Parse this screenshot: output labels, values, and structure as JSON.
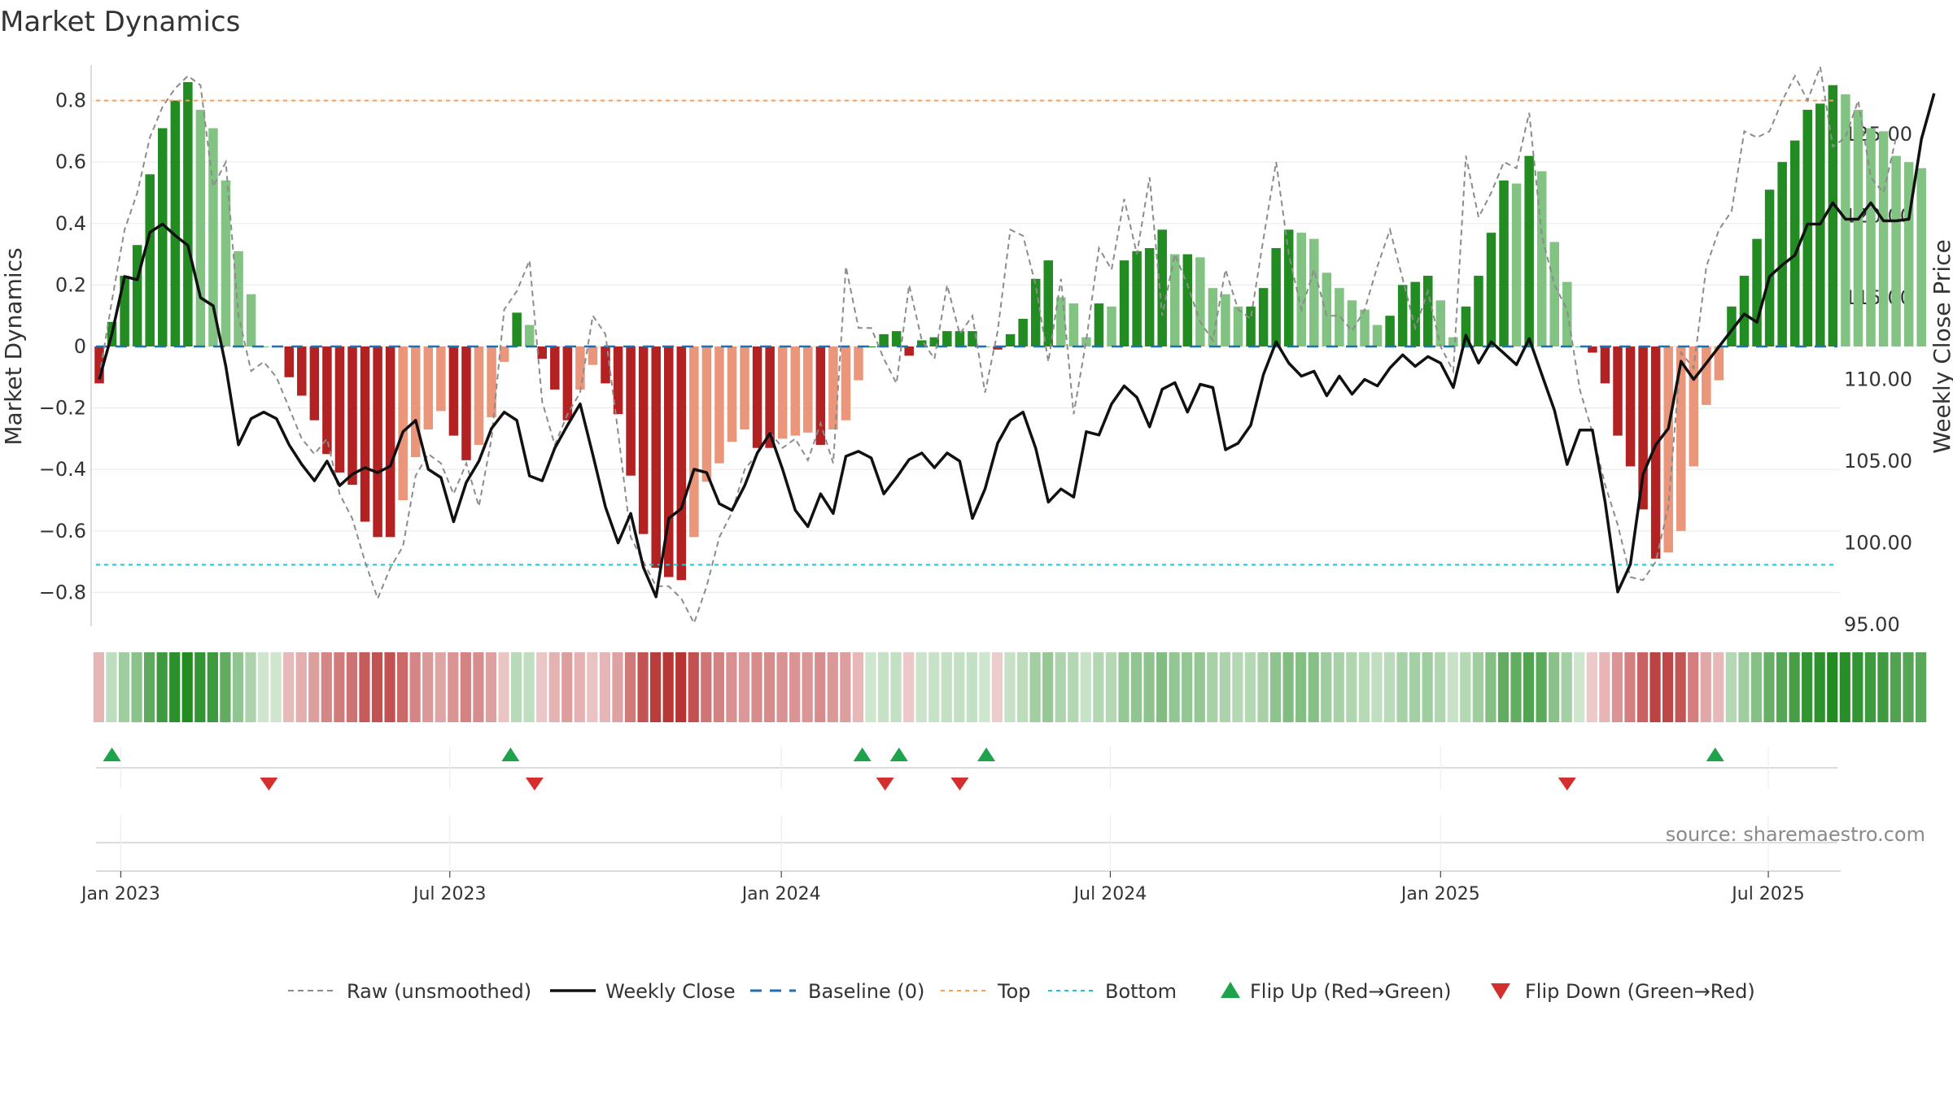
{
  "chart_data": {
    "type": "bar",
    "title": "Market Dynamics",
    "ylabel_left": "Market Dynamics",
    "ylabel_right": "Weekly Close Price",
    "source": "source: sharemaestro.com",
    "ylim_left": [
      -0.92,
      0.92
    ],
    "ylim_right": [
      95,
      128
    ],
    "yticks_left": [
      "0.8",
      "0.6",
      "0.4",
      "0.2",
      "0",
      "−0.2",
      "−0.4",
      "−0.6",
      "−0.8"
    ],
    "yticks_left_values": [
      0.8,
      0.6,
      0.4,
      0.2,
      0,
      -0.2,
      -0.4,
      -0.6,
      -0.8
    ],
    "yticks_right": [
      "125.00",
      "120.00",
      "115.00",
      "110.00",
      "105.00",
      "100.00",
      "95.00"
    ],
    "yticks_right_values": [
      125,
      120,
      115,
      110,
      105,
      100,
      95
    ],
    "xticks": [
      {
        "label": "Jan 2023",
        "week": 1.7
      },
      {
        "label": "Jul 2023",
        "week": 27.7
      },
      {
        "label": "Jan 2024",
        "week": 53.9
      },
      {
        "label": "Jul 2024",
        "week": 79.9
      },
      {
        "label": "Jan 2025",
        "week": 106.0
      },
      {
        "label": "Jul 2025",
        "week": 131.9
      }
    ],
    "top_level": 0.8,
    "bottom_level": -0.71,
    "baseline": 0,
    "dynamics": [
      -0.12,
      0.08,
      0.23,
      0.33,
      0.56,
      0.71,
      0.8,
      0.86,
      0.77,
      0.71,
      0.54,
      0.31,
      0.17,
      0,
      0,
      -0.1,
      -0.16,
      -0.24,
      -0.35,
      -0.41,
      -0.45,
      -0.57,
      -0.62,
      -0.62,
      -0.5,
      -0.36,
      -0.27,
      -0.21,
      -0.29,
      -0.37,
      -0.32,
      -0.23,
      -0.05,
      0.11,
      0.07,
      -0.04,
      -0.14,
      -0.24,
      -0.14,
      -0.06,
      -0.12,
      -0.22,
      -0.42,
      -0.61,
      -0.72,
      -0.75,
      -0.76,
      -0.62,
      -0.44,
      -0.38,
      -0.31,
      -0.27,
      -0.33,
      -0.33,
      -0.3,
      -0.29,
      -0.28,
      -0.32,
      -0.27,
      -0.24,
      -0.11,
      0,
      0.04,
      0.05,
      -0.03,
      0.02,
      0.03,
      0.05,
      0.05,
      0.05,
      0,
      -0.01,
      0.04,
      0.09,
      0.22,
      0.28,
      0.16,
      0.14,
      0.03,
      0.14,
      0.13,
      0.28,
      0.31,
      0.32,
      0.38,
      0.3,
      0.3,
      0.29,
      0.19,
      0.17,
      0.13,
      0.13,
      0.19,
      0.32,
      0.38,
      0.37,
      0.35,
      0.24,
      0.19,
      0.15,
      0.12,
      0.07,
      0.1,
      0.2,
      0.21,
      0.23,
      0.15,
      0.03,
      0.13,
      0.23,
      0.37,
      0.54,
      0.53,
      0.62,
      0.57,
      0.34,
      0.21,
      0,
      -0.02,
      -0.12,
      -0.29,
      -0.39,
      -0.53,
      -0.69,
      -0.67,
      -0.6,
      -0.39,
      -0.19,
      -0.11,
      0.13,
      0.23,
      0.35,
      0.51,
      0.6,
      0.67,
      0.77,
      0.79,
      0.85,
      0.82,
      0.77,
      0.71,
      0.7,
      0.62,
      0.6,
      0.58
    ],
    "raw": [
      -0.1,
      0.15,
      0.38,
      0.5,
      0.68,
      0.78,
      0.84,
      0.88,
      0.85,
      0.52,
      0.6,
      0.1,
      -0.08,
      -0.05,
      -0.1,
      -0.2,
      -0.3,
      -0.35,
      -0.3,
      -0.48,
      -0.56,
      -0.7,
      -0.82,
      -0.72,
      -0.65,
      -0.42,
      -0.35,
      -0.38,
      -0.48,
      -0.38,
      -0.52,
      -0.3,
      0.12,
      0.18,
      0.28,
      -0.18,
      -0.32,
      -0.22,
      -0.15,
      0.1,
      0.04,
      -0.28,
      -0.62,
      -0.7,
      -0.78,
      -0.78,
      -0.82,
      -0.9,
      -0.78,
      -0.62,
      -0.54,
      -0.4,
      -0.35,
      -0.28,
      -0.33,
      -0.3,
      -0.37,
      -0.25,
      -0.38,
      0.26,
      0.06,
      0.06,
      -0.04,
      -0.12,
      0.2,
      0.02,
      -0.04,
      0.2,
      0.04,
      0.1,
      -0.15,
      0.05,
      0.38,
      0.36,
      0.2,
      -0.05,
      0.22,
      -0.22,
      0.02,
      0.32,
      0.25,
      0.48,
      0.3,
      0.55,
      0.1,
      0.3,
      0.2,
      0.08,
      0.02,
      0.25,
      0.12,
      0.09,
      0.35,
      0.6,
      0.3,
      0.12,
      0.25,
      0.1,
      0.1,
      0.05,
      0.12,
      0.26,
      0.38,
      0.22,
      0.06,
      0.18,
      0,
      -0.08,
      0.62,
      0.42,
      0.5,
      0.6,
      0.58,
      0.76,
      0.36,
      0.2,
      0.12,
      -0.14,
      -0.28,
      -0.45,
      -0.58,
      -0.75,
      -0.76,
      -0.7,
      -0.52,
      -0.02,
      -0.07,
      0.26,
      0.38,
      0.44,
      0.7,
      0.68,
      0.7,
      0.8,
      0.88,
      0.8,
      0.91,
      0.65,
      0.68,
      0.8,
      0.55,
      0.5,
      0.68
    ],
    "weekly_close": [
      110.0,
      112.8,
      116.3,
      116.1,
      119.0,
      119.5,
      118.8,
      118.2,
      115.0,
      114.5,
      110.8,
      106.0,
      107.6,
      108.0,
      107.6,
      106.0,
      104.8,
      103.8,
      105.0,
      103.5,
      104.2,
      104.6,
      104.3,
      104.7,
      106.8,
      107.5,
      104.5,
      104.0,
      101.3,
      103.7,
      105.0,
      107.0,
      108.0,
      107.5,
      104.1,
      103.8,
      105.8,
      107.2,
      108.5,
      105.4,
      102.2,
      100.0,
      101.8,
      98.5,
      96.7,
      101.5,
      102.1,
      104.5,
      104.3,
      102.4,
      102.0,
      103.5,
      105.5,
      106.7,
      104.5,
      102.0,
      101.0,
      103.0,
      101.8,
      105.3,
      105.6,
      105.2,
      103.0,
      104.0,
      105.1,
      105.5,
      104.6,
      105.5,
      105.0,
      101.5,
      103.3,
      106.1,
      107.5,
      108.0,
      105.8,
      102.5,
      103.3,
      102.8,
      106.8,
      106.6,
      108.5,
      109.6,
      108.9,
      107.1,
      109.4,
      109.8,
      108.0,
      109.7,
      109.5,
      105.7,
      106.1,
      107.2,
      110.3,
      112.3,
      111.0,
      110.2,
      110.5,
      109.0,
      110.2,
      109.1,
      110.0,
      109.6,
      110.7,
      111.5,
      110.8,
      111.4,
      111.0,
      109.5,
      112.7,
      111.0,
      112.3,
      111.6,
      110.9,
      112.5,
      110.3,
      108.1,
      104.8,
      106.9,
      106.9,
      102.5,
      97.0,
      98.7,
      104.2,
      106.0,
      107.0,
      111.1,
      110.0,
      111.0,
      112.0,
      113.0,
      114.0,
      113.5,
      116.3,
      117.0,
      117.6,
      119.5,
      119.5,
      120.8,
      119.8,
      119.8,
      120.8,
      119.7,
      119.7,
      119.8,
      124.7,
      127.5
    ],
    "flips_up": [
      1.0,
      32.5,
      60.3,
      63.2,
      70.1,
      127.7
    ],
    "flips_down": [
      13.4,
      34.4,
      62.1,
      68.0,
      116.0
    ],
    "legend": [
      {
        "label": "Raw (unsmoothed)",
        "style": "dashed-gray"
      },
      {
        "label": "Weekly Close",
        "style": "solid-black"
      },
      {
        "label": "Baseline (0)",
        "style": "dashed-blue"
      },
      {
        "label": "Top",
        "style": "dotted-orange"
      },
      {
        "label": "Bottom",
        "style": "dotted-cyan"
      },
      {
        "label": "Flip Up (Red→Green)",
        "style": "triangle-up-green"
      },
      {
        "label": "Flip Down (Green→Red)",
        "style": "triangle-down-red"
      }
    ],
    "colors": {
      "green_strong": "#228b22",
      "green_light": "#82c282",
      "red_strong": "#b22222",
      "red_light": "#e9967a",
      "raw": "#8c8c8c",
      "close": "#111111",
      "baseline": "#1f6fb4",
      "top": "#f0a060",
      "bottom": "#2bbfd0",
      "flip_up": "#1fa34a",
      "flip_down": "#d32f2f",
      "grid": "#ececec"
    }
  }
}
